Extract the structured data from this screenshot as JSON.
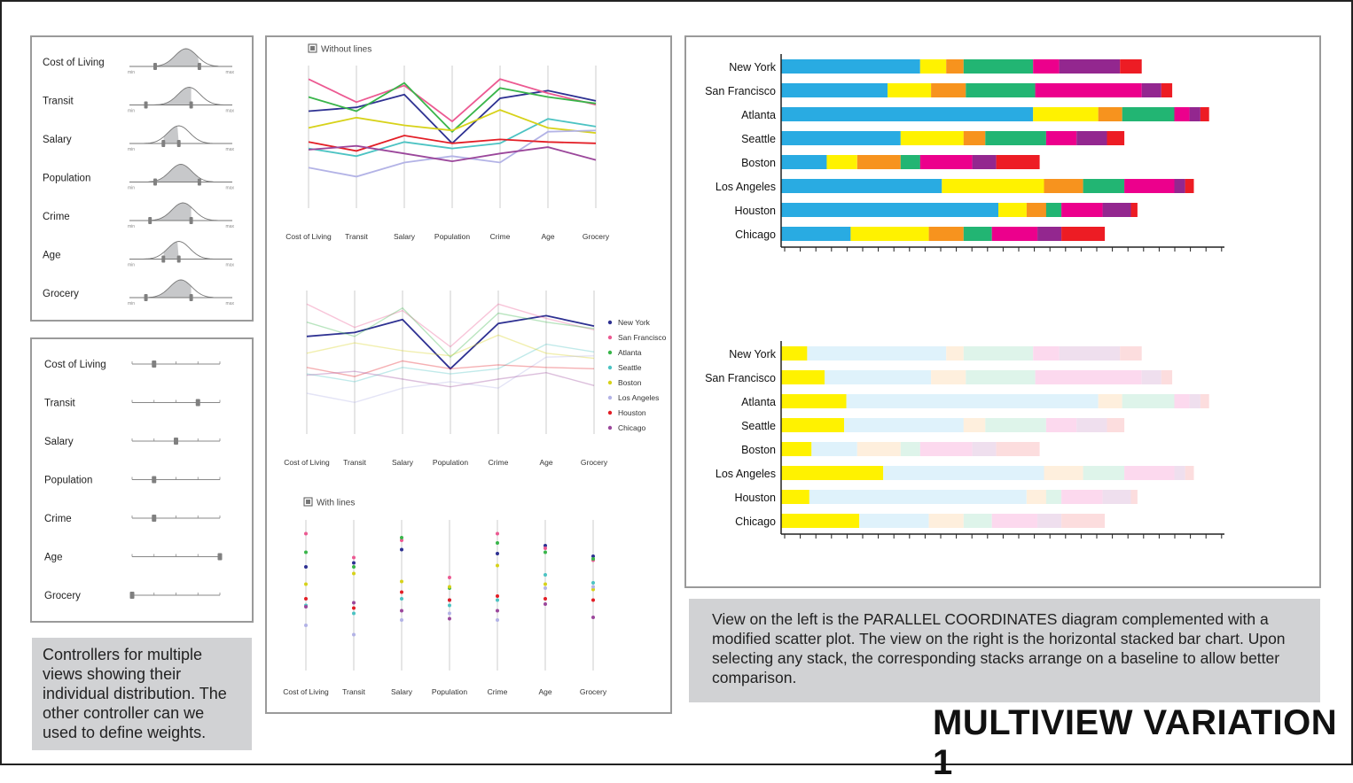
{
  "title": "MULTIVIEW VARIATION 1",
  "left_note": "Controllers for multiple views showing their individual distribution. The other controller can we used to define weights.",
  "right_note": "View on the left is the PARALLEL COORDINATES diagram complemented with a modified scatter plot. The view on the right is the horizontal stacked bar chart. Upon selecting any stack, the corresponding stacks arrange on a baseline to allow better comparison.",
  "distribution_controls": {
    "min_label": "min",
    "max_label": "max",
    "items": [
      {
        "label": "Cost of Living",
        "peak": 0.55,
        "low": 0.25,
        "high": 0.68
      },
      {
        "label": "Transit",
        "peak": 0.58,
        "low": 0.16,
        "high": 0.6
      },
      {
        "label": "Salary",
        "peak": 0.48,
        "low": 0.33,
        "high": 0.48
      },
      {
        "label": "Population",
        "peak": 0.5,
        "low": 0.25,
        "high": 0.68
      },
      {
        "label": "Crime",
        "peak": 0.52,
        "low": 0.2,
        "high": 0.6
      },
      {
        "label": "Age",
        "peak": 0.48,
        "low": 0.33,
        "high": 0.48
      },
      {
        "label": "Grocery",
        "peak": 0.5,
        "low": 0.16,
        "high": 0.6
      }
    ]
  },
  "weight_controls": {
    "items": [
      {
        "label": "Cost of Living",
        "value": 0.25
      },
      {
        "label": "Transit",
        "value": 0.75
      },
      {
        "label": "Salary",
        "value": 0.5
      },
      {
        "label": "Population",
        "value": 0.25
      },
      {
        "label": "Crime",
        "value": 0.25
      },
      {
        "label": "Age",
        "value": 1.0
      },
      {
        "label": "Grocery",
        "value": 0.0
      }
    ]
  },
  "chart_data": [
    {
      "type": "line",
      "title": "Without lines",
      "categories": [
        "Cost of Living",
        "Transit",
        "Salary",
        "Population",
        "Crime",
        "Age",
        "Grocery"
      ],
      "ylim": [
        0,
        1
      ],
      "series": [
        {
          "name": "New York",
          "color": "#2e3192",
          "values": [
            0.7,
            0.73,
            0.83,
            0.45,
            0.8,
            0.86,
            0.78
          ]
        },
        {
          "name": "San Francisco",
          "color": "#ec5a92",
          "values": [
            0.95,
            0.77,
            0.9,
            0.62,
            0.95,
            0.84,
            0.75
          ]
        },
        {
          "name": "Atlanta",
          "color": "#39b54a",
          "values": [
            0.81,
            0.7,
            0.92,
            0.54,
            0.88,
            0.81,
            0.76
          ]
        },
        {
          "name": "Seattle",
          "color": "#4cc3c3",
          "values": [
            0.41,
            0.35,
            0.46,
            0.41,
            0.45,
            0.64,
            0.58
          ]
        },
        {
          "name": "Boston",
          "color": "#d7d21a",
          "values": [
            0.57,
            0.65,
            0.59,
            0.55,
            0.71,
            0.57,
            0.53
          ]
        },
        {
          "name": "Los Angeles",
          "color": "#b3b3e6",
          "values": [
            0.26,
            0.19,
            0.3,
            0.35,
            0.3,
            0.54,
            0.55
          ]
        },
        {
          "name": "Houston",
          "color": "#e31e26",
          "values": [
            0.46,
            0.39,
            0.51,
            0.45,
            0.48,
            0.46,
            0.45
          ]
        },
        {
          "name": "Chicago",
          "color": "#9b479b",
          "values": [
            0.4,
            0.43,
            0.37,
            0.31,
            0.37,
            0.42,
            0.32
          ]
        }
      ]
    },
    {
      "type": "line",
      "categories": [
        "Cost of Living",
        "Transit",
        "Salary",
        "Population",
        "Crime",
        "Age",
        "Grocery"
      ],
      "ylim": [
        0,
        1
      ],
      "highlight": "New York",
      "legend": "right",
      "series": [
        {
          "name": "New York",
          "color": "#2e3192",
          "values": [
            0.7,
            0.73,
            0.83,
            0.45,
            0.8,
            0.86,
            0.78
          ]
        },
        {
          "name": "San Francisco",
          "color": "#ec5a92",
          "values": [
            0.95,
            0.77,
            0.9,
            0.62,
            0.95,
            0.84,
            0.75
          ]
        },
        {
          "name": "Atlanta",
          "color": "#39b54a",
          "values": [
            0.81,
            0.7,
            0.92,
            0.54,
            0.88,
            0.81,
            0.76
          ]
        },
        {
          "name": "Seattle",
          "color": "#4cc3c3",
          "values": [
            0.41,
            0.35,
            0.46,
            0.41,
            0.45,
            0.64,
            0.58
          ]
        },
        {
          "name": "Boston",
          "color": "#d7d21a",
          "values": [
            0.57,
            0.65,
            0.59,
            0.55,
            0.71,
            0.57,
            0.53
          ]
        },
        {
          "name": "Los Angeles",
          "color": "#b3b3e6",
          "values": [
            0.26,
            0.19,
            0.3,
            0.35,
            0.3,
            0.54,
            0.55
          ]
        },
        {
          "name": "Houston",
          "color": "#e31e26",
          "values": [
            0.46,
            0.39,
            0.51,
            0.45,
            0.48,
            0.46,
            0.45
          ]
        },
        {
          "name": "Chicago",
          "color": "#9b479b",
          "values": [
            0.4,
            0.43,
            0.37,
            0.31,
            0.37,
            0.42,
            0.32
          ]
        }
      ]
    },
    {
      "type": "scatter",
      "title": "With lines",
      "categories": [
        "Cost of Living",
        "Transit",
        "Salary",
        "Population",
        "Crime",
        "Age",
        "Grocery"
      ],
      "ylim": [
        0,
        1
      ],
      "series": [
        {
          "name": "New York",
          "color": "#2e3192",
          "values": [
            0.7,
            0.73,
            0.83,
            0.45,
            0.8,
            0.86,
            0.78
          ]
        },
        {
          "name": "San Francisco",
          "color": "#ec5a92",
          "values": [
            0.95,
            0.77,
            0.9,
            0.62,
            0.95,
            0.84,
            0.75
          ]
        },
        {
          "name": "Atlanta",
          "color": "#39b54a",
          "values": [
            0.81,
            0.7,
            0.92,
            0.54,
            0.88,
            0.81,
            0.76
          ]
        },
        {
          "name": "Seattle",
          "color": "#4cc3c3",
          "values": [
            0.41,
            0.35,
            0.46,
            0.41,
            0.45,
            0.64,
            0.58
          ]
        },
        {
          "name": "Boston",
          "color": "#d7d21a",
          "values": [
            0.57,
            0.65,
            0.59,
            0.55,
            0.71,
            0.57,
            0.53
          ]
        },
        {
          "name": "Los Angeles",
          "color": "#b3b3e6",
          "values": [
            0.26,
            0.19,
            0.3,
            0.35,
            0.3,
            0.54,
            0.55
          ]
        },
        {
          "name": "Houston",
          "color": "#e31e26",
          "values": [
            0.46,
            0.39,
            0.51,
            0.45,
            0.48,
            0.46,
            0.45
          ]
        },
        {
          "name": "Chicago",
          "color": "#9b479b",
          "values": [
            0.4,
            0.43,
            0.37,
            0.31,
            0.37,
            0.42,
            0.32
          ]
        }
      ]
    },
    {
      "type": "bar",
      "orientation": "horizontal",
      "stacked": true,
      "categories": [
        "New York",
        "San Francisco",
        "Atlanta",
        "Seattle",
        "Boston",
        "Los Angeles",
        "Houston",
        "Chicago"
      ],
      "xlim": [
        0,
        100
      ],
      "segment_colors": [
        "#29abe2",
        "#fff200",
        "#f7931e",
        "#22b573",
        "#ec008c",
        "#93278f",
        "#ed1c24"
      ],
      "rows": [
        [
          32,
          6,
          4,
          16,
          6,
          14,
          5
        ],
        [
          24.5,
          10,
          8,
          16,
          24.5,
          4.5,
          2.5
        ],
        [
          58,
          15,
          5.5,
          12,
          3.5,
          2.5,
          2
        ],
        [
          27.5,
          14.5,
          5,
          14,
          7,
          7,
          4
        ],
        [
          10.5,
          7,
          10,
          4.5,
          12,
          5.5,
          10
        ],
        [
          37,
          23.5,
          9,
          9.5,
          11.5,
          2.5,
          2
        ],
        [
          50,
          6.5,
          4.5,
          3.5,
          9.5,
          6.5,
          1.5
        ],
        [
          16,
          18,
          8,
          6.5,
          10.5,
          5.5,
          10
        ]
      ]
    },
    {
      "type": "bar",
      "orientation": "horizontal",
      "stacked": true,
      "baseline_segment": 1,
      "categories": [
        "New York",
        "San Francisco",
        "Atlanta",
        "Seattle",
        "Boston",
        "Los Angeles",
        "Houston",
        "Chicago"
      ],
      "xlim": [
        0,
        100
      ],
      "segment_colors": [
        "#29abe2",
        "#fff200",
        "#f7931e",
        "#22b573",
        "#ec008c",
        "#93278f",
        "#ed1c24"
      ],
      "rows": [
        [
          32,
          6,
          4,
          16,
          6,
          14,
          5
        ],
        [
          24.5,
          10,
          8,
          16,
          24.5,
          4.5,
          2.5
        ],
        [
          58,
          15,
          5.5,
          12,
          3.5,
          2.5,
          2
        ],
        [
          27.5,
          14.5,
          5,
          14,
          7,
          7,
          4
        ],
        [
          10.5,
          7,
          10,
          4.5,
          12,
          5.5,
          10
        ],
        [
          37,
          23.5,
          9,
          9.5,
          11.5,
          2.5,
          2
        ],
        [
          50,
          6.5,
          4.5,
          3.5,
          9.5,
          6.5,
          1.5
        ],
        [
          16,
          18,
          8,
          6.5,
          10.5,
          5.5,
          10
        ]
      ]
    }
  ]
}
